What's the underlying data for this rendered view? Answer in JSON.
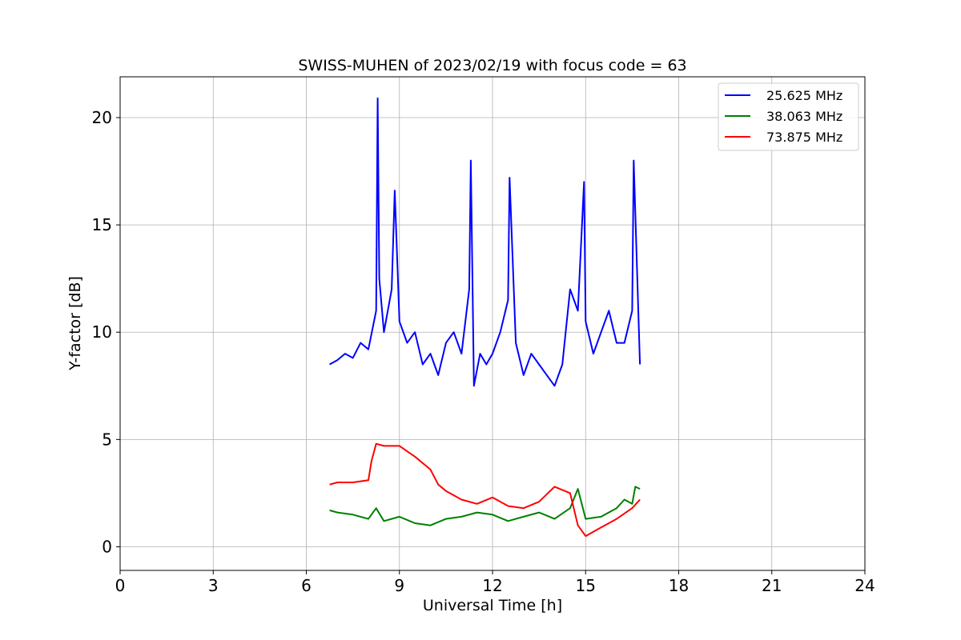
{
  "chart_data": {
    "type": "line",
    "title": "SWISS-MUHEN of 2023/02/19 with focus code = 63",
    "xlabel": "Universal Time [h]",
    "ylabel": "Y-factor [dB]",
    "xlim": [
      0,
      24
    ],
    "ylim": [
      -1.1,
      21.9
    ],
    "x_ticks": [
      0,
      3,
      6,
      9,
      12,
      15,
      18,
      21,
      24
    ],
    "y_ticks": [
      0,
      5,
      10,
      15,
      20
    ],
    "grid": true,
    "legend_position": "top-right",
    "series": [
      {
        "name": "25.625 MHz",
        "color": "#0000ff",
        "x": [
          6.75,
          7.0,
          7.25,
          7.5,
          7.75,
          8.0,
          8.25,
          8.3,
          8.35,
          8.5,
          8.75,
          8.85,
          9.0,
          9.25,
          9.5,
          9.75,
          10.0,
          10.25,
          10.5,
          10.75,
          11.0,
          11.25,
          11.3,
          11.4,
          11.6,
          11.8,
          12.0,
          12.25,
          12.5,
          12.55,
          12.75,
          13.0,
          13.25,
          13.5,
          13.75,
          14.0,
          14.25,
          14.5,
          14.75,
          14.95,
          15.0,
          15.25,
          15.5,
          15.75,
          16.0,
          16.25,
          16.5,
          16.55,
          16.75
        ],
        "y": [
          8.5,
          8.7,
          9.0,
          8.8,
          9.5,
          9.2,
          11.0,
          20.9,
          12.5,
          10.0,
          12.0,
          16.6,
          10.5,
          9.5,
          10.0,
          8.5,
          9.0,
          8.0,
          9.5,
          10.0,
          9.0,
          12.0,
          18.0,
          7.5,
          9.0,
          8.5,
          9.0,
          10.0,
          11.5,
          17.2,
          9.5,
          8.0,
          9.0,
          8.5,
          8.0,
          7.5,
          8.5,
          12.0,
          11.0,
          17.0,
          10.5,
          9.0,
          10.0,
          11.0,
          9.5,
          9.5,
          11.0,
          18.0,
          8.5
        ]
      },
      {
        "name": "38.063 MHz",
        "color": "#008000",
        "x": [
          6.75,
          7.0,
          7.5,
          8.0,
          8.25,
          8.5,
          9.0,
          9.5,
          10.0,
          10.5,
          11.0,
          11.5,
          12.0,
          12.5,
          13.0,
          13.5,
          14.0,
          14.5,
          14.75,
          15.0,
          15.5,
          16.0,
          16.25,
          16.5,
          16.6,
          16.75
        ],
        "y": [
          1.7,
          1.6,
          1.5,
          1.3,
          1.8,
          1.2,
          1.4,
          1.1,
          1.0,
          1.3,
          1.4,
          1.6,
          1.5,
          1.2,
          1.4,
          1.6,
          1.3,
          1.8,
          2.7,
          1.3,
          1.4,
          1.8,
          2.2,
          2.0,
          2.8,
          2.7
        ]
      },
      {
        "name": "73.875 MHz",
        "color": "#ff0000",
        "x": [
          6.75,
          7.0,
          7.5,
          8.0,
          8.1,
          8.25,
          8.5,
          9.0,
          9.5,
          10.0,
          10.25,
          10.5,
          11.0,
          11.5,
          12.0,
          12.5,
          13.0,
          13.5,
          14.0,
          14.5,
          14.75,
          15.0,
          15.5,
          16.0,
          16.5,
          16.75
        ],
        "y": [
          2.9,
          3.0,
          3.0,
          3.1,
          4.0,
          4.8,
          4.7,
          4.7,
          4.2,
          3.6,
          2.9,
          2.6,
          2.2,
          2.0,
          2.3,
          1.9,
          1.8,
          2.1,
          2.8,
          2.5,
          1.0,
          0.5,
          0.9,
          1.3,
          1.8,
          2.2
        ]
      }
    ]
  }
}
